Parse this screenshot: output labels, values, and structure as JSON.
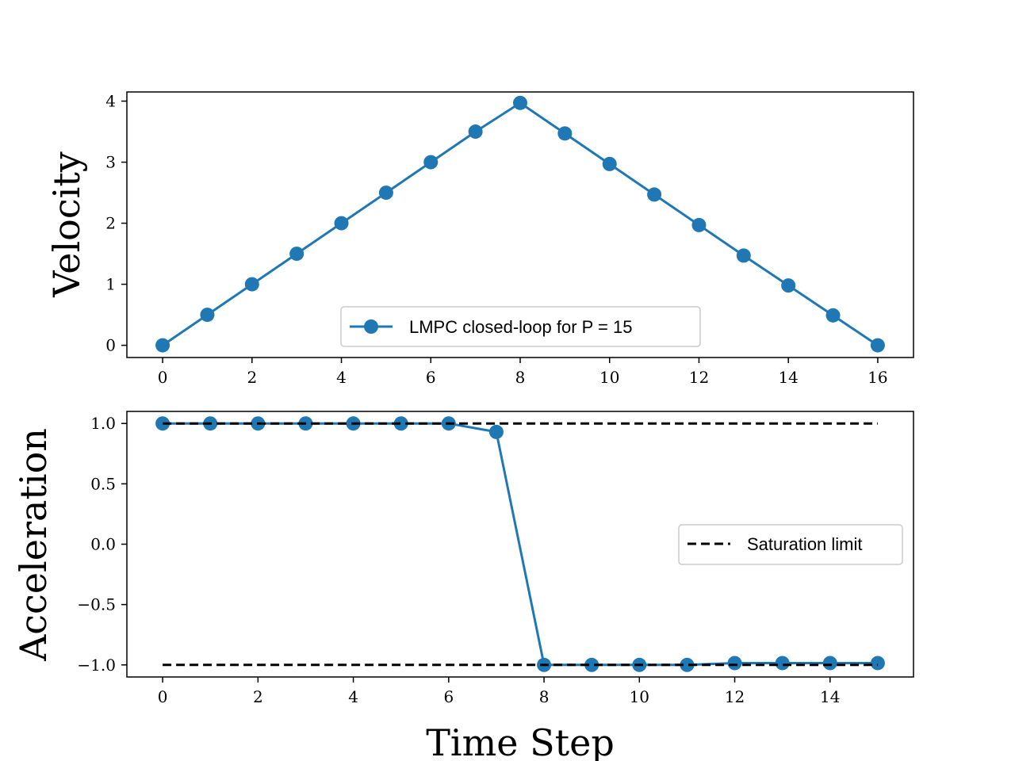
{
  "chart_data": [
    {
      "type": "line",
      "title": "",
      "xlabel": "",
      "ylabel": "Velocity",
      "xlim": [
        -0.8,
        16.8
      ],
      "ylim": [
        -0.2,
        4.15
      ],
      "xticks": [
        0,
        2,
        4,
        6,
        8,
        10,
        12,
        14,
        16
      ],
      "yticks": [
        0,
        1,
        2,
        3,
        4
      ],
      "grid": false,
      "legend": {
        "placement": "lower-center",
        "entries": [
          "LMPC closed-loop for P = 15"
        ]
      },
      "series": [
        {
          "name": "LMPC closed-loop for P = 15",
          "color": "#1f77b4",
          "marker": "circle",
          "x": [
            0,
            1,
            2,
            3,
            4,
            5,
            6,
            7,
            8,
            9,
            10,
            11,
            12,
            13,
            14,
            15,
            16
          ],
          "y": [
            0,
            0.5,
            1.0,
            1.5,
            2.0,
            2.5,
            3.0,
            3.5,
            3.97,
            3.47,
            2.97,
            2.47,
            1.97,
            1.47,
            0.98,
            0.49,
            0
          ]
        }
      ]
    },
    {
      "type": "line",
      "title": "",
      "xlabel": "Time Step",
      "ylabel": "Acceleration",
      "xlim": [
        -0.75,
        15.75
      ],
      "ylim": [
        -1.1,
        1.1
      ],
      "xticks": [
        0,
        2,
        4,
        6,
        8,
        10,
        12,
        14
      ],
      "yticks": [
        -1.0,
        -0.5,
        0.0,
        0.5,
        1.0
      ],
      "ytick_labels": [
        "−1.0",
        "−0.5",
        "0.0",
        "0.5",
        "1.0"
      ],
      "grid": false,
      "legend": {
        "placement": "center-right",
        "entries": [
          "Saturation limit"
        ]
      },
      "series": [
        {
          "name": "",
          "color": "#1f77b4",
          "marker": "circle",
          "x": [
            0,
            1,
            2,
            3,
            4,
            5,
            6,
            7,
            8,
            9,
            10,
            11,
            12,
            13,
            14,
            15
          ],
          "y": [
            1.0,
            1.0,
            1.0,
            1.0,
            1.0,
            1.0,
            1.0,
            0.93,
            -1.0,
            -1.0,
            -1.0,
            -1.0,
            -0.985,
            -0.985,
            -0.985,
            -0.985
          ]
        },
        {
          "name": "Saturation limit",
          "color": "#000000",
          "style": "dashed",
          "x": [
            0,
            15
          ],
          "y": [
            1.0,
            1.0
          ]
        },
        {
          "name": "",
          "color": "#000000",
          "style": "dashed",
          "x": [
            0,
            15
          ],
          "y": [
            -1.0,
            -1.0
          ]
        }
      ]
    }
  ]
}
